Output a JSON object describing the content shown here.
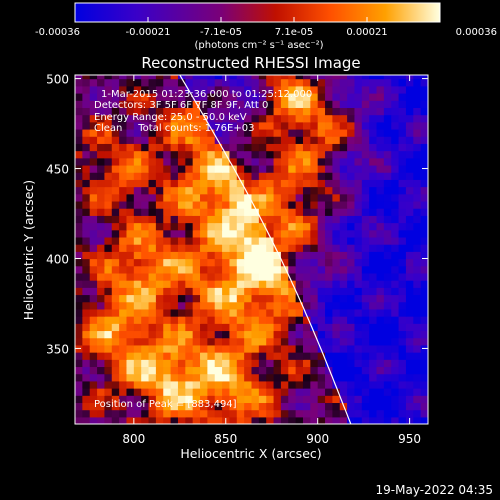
{
  "chart_data": {
    "type": "heatmap",
    "title": "Reconstructed RHESSI Image",
    "xlabel": "Heliocentric X (arcsec)",
    "ylabel": "Heliocentric Y (arcsec)",
    "xlim": [
      768,
      960
    ],
    "ylim": [
      308,
      502
    ],
    "xticks": [
      800,
      850,
      900,
      950
    ],
    "yticks": [
      350,
      400,
      450,
      500
    ],
    "colorbar": {
      "ticks": [
        "-0.00036",
        "-0.00021",
        "-7.1e-05",
        "7.1e-05",
        "0.00021",
        "0.00036"
      ],
      "label": "(photons cm⁻² s⁻¹ asec⁻²)",
      "range": [
        -0.00036,
        0.00036
      ],
      "colors": [
        "#0000e0",
        "#3a00c8",
        "#7a0078",
        "#c01000",
        "#ff5000",
        "#ffa000",
        "#ffffe0"
      ]
    },
    "annotations": [
      "1-Mar-2015 01:23:36.000 to 01:25:12.000",
      "Detectors: 3F 5F 6F 7F 8F 9F, Att 0",
      "Energy Range: 25.0 - 50.0 keV",
      "Clean     Total counts: 1.76E+03",
      "Position of Peak = [883,494]"
    ],
    "peak": [
      883,
      494
    ],
    "limb_color": "#ffffff",
    "grid": false,
    "image_cell_arcsec": 4
  },
  "footer": {
    "timestamp": "19-May-2022 04:35"
  }
}
